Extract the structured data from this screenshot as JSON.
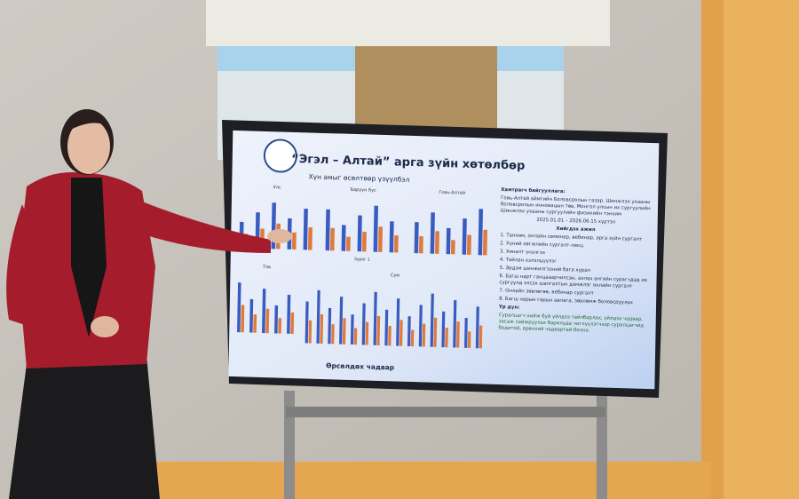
{
  "slide": {
    "title": "“Эгэл – Алтай” арга зүйн хөтөлбөр",
    "left": {
      "heading": "Хүн амыг өсөлтөөр үзүүлбэл",
      "charts": [
        "Улс",
        "Баруун бүс",
        "Говь-Алтай",
        "Тэв",
        "Сум"
      ],
      "caption": "Зураг 1",
      "footer": "Өрсөлдөх чадвар"
    },
    "right": {
      "partners_label": "Хамтрагч байгууллага:",
      "partners": "Говь-Алтай аймгийн Боловсролын газар, Шинжлэх ухааны боловсролын инновацын төв, Монгол улсын их сургуулийн Шинжлэх ухааны сургуулийн физикийн тэнхим",
      "period": "2025.01.01 – 2026.06.15 хүртэл",
      "tasks_heading": "Хийгдэх ажил",
      "tasks": [
        "1. Танхим, онлайн семинар, вебинар, арга зүйн сургалт",
        "2. Хүний хөгжлийн сургалт-лекц",
        "3. Хяналт үнэлгээ",
        "4. Тайлан хэлэлцүүлэг",
        "5. Эрдэм шинжилгээний бага хурал",
        "6. Багш нарт ганцааарчилсан, ахлах ангийн сурагчдад их сургуулд элсэх шалгалтын дэмжлэг онлайн сургалт",
        "7. Онлайн зөвлөгөө, вебинар сургалт",
        "8. Багш нарын гарын авлага, зөвлөмж боловсруулах"
      ],
      "result_label": "Үр дүн:",
      "result": "Суралцагч хийж буй үйлдээ тайлбарлах, үйлдэх чадвар, засаж сайжруулах барилцаа чиглүүлэгчээр суралцагчид бодитой, ерөнхий чадвартай болно."
    }
  }
}
